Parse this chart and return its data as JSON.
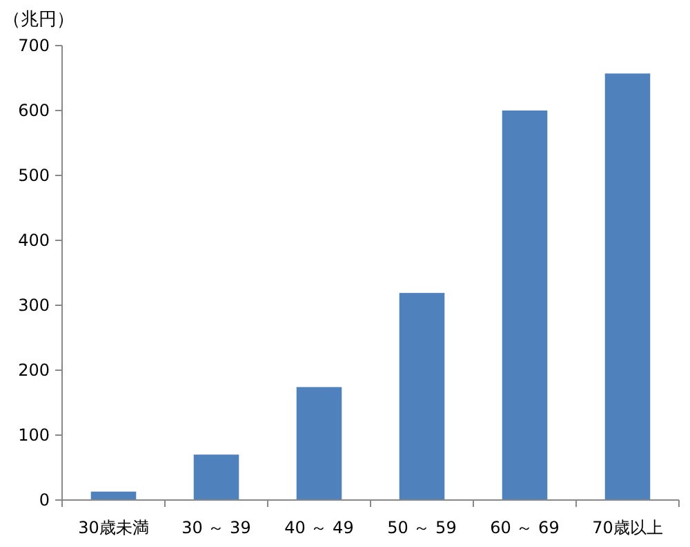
{
  "chart_data": {
    "type": "bar",
    "ylabel": "（兆円）",
    "categories": [
      "30歳未満",
      "30 ～ 39",
      "40 ～ 49",
      "50 ～ 59",
      "60 ～ 69",
      "70歳以上"
    ],
    "values": [
      13,
      70,
      174,
      319,
      600,
      657
    ],
    "color": "#4f81bd",
    "ylim": [
      0,
      700
    ],
    "yticks": [
      0,
      100,
      200,
      300,
      400,
      500,
      600,
      700
    ],
    "grid": false
  }
}
